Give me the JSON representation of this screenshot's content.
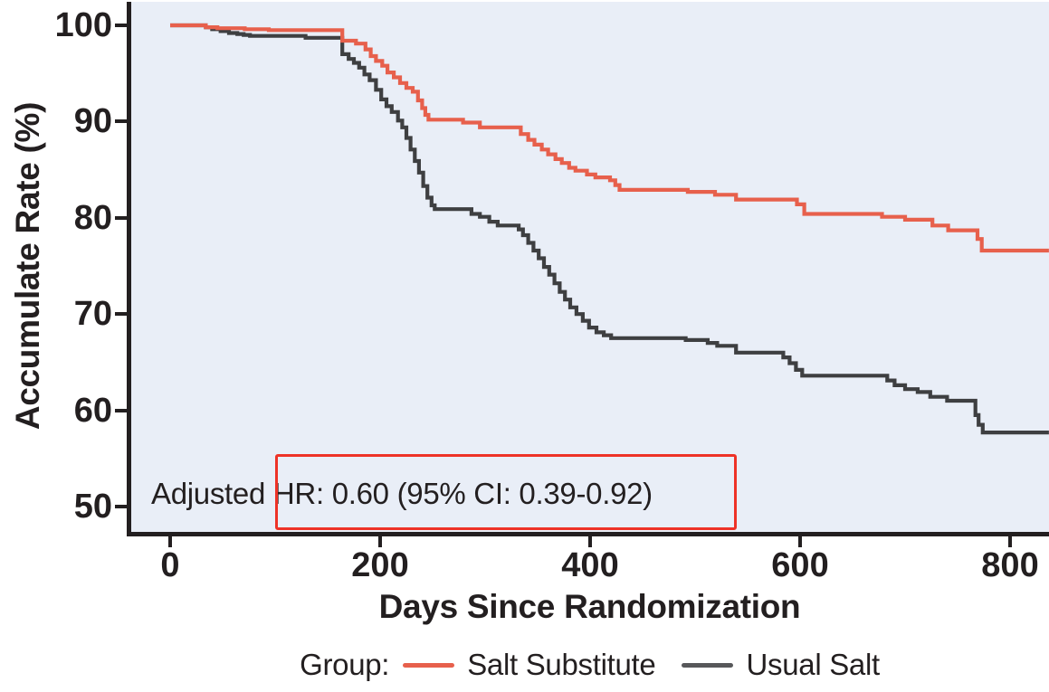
{
  "figure": {
    "y_axis": {
      "title": "Accumulate Rate (%)"
    },
    "x_axis": {
      "title": "Days Since Randomization"
    },
    "annotation": {
      "text": "Adjusted HR: 0.60 (95% CI: 0.39-0.92)",
      "box_color": "#ee3227"
    },
    "legend": {
      "label": "Group:"
    }
  },
  "colors": {
    "plot_background": "#e9eef7",
    "axis": "#231f20",
    "text": "#231f20",
    "salt_substitute": "#e7604c",
    "usual_salt": "#3e3f41",
    "legend_usual_salt_swatch": "#57585a",
    "annotation_box": "#ee3227"
  },
  "chart_data": {
    "type": "line",
    "subtype": "kaplan-meier-step",
    "title": "",
    "xlabel": "Days Since Randomization",
    "ylabel": "Accumulate Rate (%)",
    "xlim": [
      0,
      837
    ],
    "ylim": [
      47.4,
      102.3
    ],
    "x_ticks": [
      0,
      200,
      400,
      600,
      800
    ],
    "y_ticks": [
      100,
      90,
      80,
      70,
      60,
      50
    ],
    "grid": false,
    "legend_position": "bottom",
    "annotation": "Adjusted HR: 0.60 (95% CI: 0.39-0.92)",
    "series": [
      {
        "name": "Usual Salt",
        "color": "#3e3f41",
        "swatch_color": "#57585a",
        "points": [
          [
            0,
            100
          ],
          [
            34,
            99.8
          ],
          [
            40,
            99.6
          ],
          [
            48,
            99.4
          ],
          [
            56,
            99.2
          ],
          [
            64,
            99.1
          ],
          [
            70,
            99.0
          ],
          [
            76,
            98.9
          ],
          [
            129,
            98.7
          ],
          [
            164,
            97.0
          ],
          [
            170,
            96.5
          ],
          [
            175,
            96.1
          ],
          [
            180,
            95.6
          ],
          [
            185,
            94.9
          ],
          [
            190,
            94.3
          ],
          [
            196,
            93.3
          ],
          [
            201,
            92.3
          ],
          [
            206,
            91.6
          ],
          [
            211,
            91.0
          ],
          [
            217,
            90.1
          ],
          [
            221,
            89.4
          ],
          [
            225,
            88.3
          ],
          [
            229,
            87.1
          ],
          [
            233,
            85.9
          ],
          [
            237,
            84.7
          ],
          [
            241,
            83.3
          ],
          [
            245,
            82.1
          ],
          [
            249,
            81.3
          ],
          [
            252,
            80.9
          ],
          [
            287,
            80.4
          ],
          [
            295,
            80.1
          ],
          [
            304,
            79.6
          ],
          [
            312,
            79.2
          ],
          [
            332,
            78.8
          ],
          [
            336,
            78.2
          ],
          [
            341,
            77.4
          ],
          [
            346,
            76.6
          ],
          [
            351,
            75.8
          ],
          [
            356,
            74.9
          ],
          [
            361,
            74.1
          ],
          [
            366,
            73.2
          ],
          [
            371,
            72.3
          ],
          [
            376,
            71.5
          ],
          [
            381,
            70.7
          ],
          [
            387,
            70.0
          ],
          [
            393,
            69.3
          ],
          [
            399,
            68.6
          ],
          [
            406,
            68.1
          ],
          [
            413,
            67.8
          ],
          [
            420,
            67.5
          ],
          [
            491,
            67.3
          ],
          [
            512,
            67.0
          ],
          [
            521,
            66.7
          ],
          [
            539,
            66.0
          ],
          [
            584,
            65.5
          ],
          [
            590,
            64.9
          ],
          [
            596,
            64.2
          ],
          [
            602,
            63.6
          ],
          [
            683,
            63.1
          ],
          [
            690,
            62.6
          ],
          [
            700,
            62.2
          ],
          [
            712,
            61.9
          ],
          [
            724,
            61.4
          ],
          [
            740,
            61.0
          ],
          [
            767,
            59.5
          ],
          [
            770,
            58.5
          ],
          [
            774,
            57.7
          ],
          [
            837,
            57.7
          ]
        ]
      },
      {
        "name": "Salt Substitute",
        "color": "#e7604c",
        "swatch_color": "#e7604c",
        "points": [
          [
            0,
            100
          ],
          [
            34,
            99.8
          ],
          [
            45,
            99.7
          ],
          [
            71,
            99.6
          ],
          [
            94,
            99.5
          ],
          [
            164,
            98.4
          ],
          [
            177,
            98.1
          ],
          [
            186,
            97.5
          ],
          [
            191,
            96.8
          ],
          [
            196,
            96.3
          ],
          [
            202,
            95.8
          ],
          [
            207,
            95.1
          ],
          [
            213,
            94.6
          ],
          [
            219,
            94.0
          ],
          [
            225,
            93.5
          ],
          [
            231,
            93.1
          ],
          [
            236,
            92.2
          ],
          [
            240,
            91.4
          ],
          [
            243,
            90.7
          ],
          [
            246,
            90.2
          ],
          [
            279,
            89.9
          ],
          [
            295,
            89.4
          ],
          [
            334,
            88.7
          ],
          [
            341,
            88.1
          ],
          [
            347,
            87.6
          ],
          [
            354,
            87.1
          ],
          [
            360,
            86.6
          ],
          [
            367,
            86.1
          ],
          [
            373,
            85.7
          ],
          [
            380,
            85.2
          ],
          [
            386,
            84.9
          ],
          [
            397,
            84.5
          ],
          [
            405,
            84.2
          ],
          [
            419,
            83.9
          ],
          [
            424,
            83.4
          ],
          [
            428,
            82.9
          ],
          [
            493,
            82.7
          ],
          [
            519,
            82.4
          ],
          [
            539,
            81.9
          ],
          [
            597,
            81.4
          ],
          [
            604,
            80.4
          ],
          [
            678,
            80.1
          ],
          [
            700,
            79.8
          ],
          [
            726,
            79.2
          ],
          [
            741,
            78.7
          ],
          [
            769,
            77.8
          ],
          [
            773,
            76.6
          ],
          [
            837,
            76.6
          ]
        ]
      }
    ],
    "legend_order": [
      "Salt Substitute",
      "Usual Salt"
    ]
  }
}
